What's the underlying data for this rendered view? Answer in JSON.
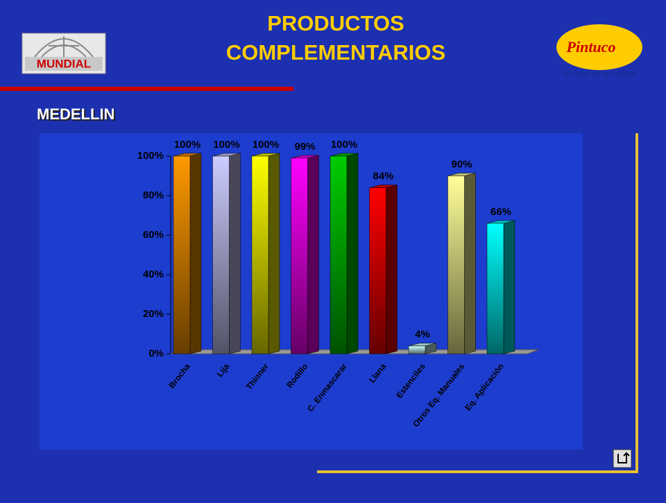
{
  "slide": {
    "title_lines": [
      "PRODUCTOS",
      "COMPLEMENTARIOS"
    ],
    "section": "MEDELLIN",
    "logo_left": "MUNDIAL",
    "logo_right": "Pintuco",
    "tagline": "El Color de la Calidad"
  },
  "chart_data": {
    "type": "bar3d",
    "categories": [
      "Brocha",
      "Lija",
      "Thinner",
      "Rodillo",
      "C. Enmascarar",
      "Llana",
      "Estenciles",
      "Otros Eq. Manuales",
      "Eq. Aplicación"
    ],
    "values": [
      100,
      100,
      100,
      99,
      100,
      84,
      4,
      90,
      66
    ],
    "value_labels": [
      "100%",
      "100%",
      "100%",
      "99%",
      "100%",
      "84%",
      "4%",
      "90%",
      "66%"
    ],
    "colors": [
      "#ff9900",
      "#ccccff",
      "#ffff00",
      "#ff00ff",
      "#00cc00",
      "#ff0000",
      "#ccffff",
      "#ffff99",
      "#00ffff"
    ],
    "ylim": [
      0,
      100
    ],
    "yticks": [
      {
        "value": 0,
        "label": "0%"
      },
      {
        "value": 20,
        "label": "20%"
      },
      {
        "value": 40,
        "label": "40%"
      },
      {
        "value": 60,
        "label": "60%"
      },
      {
        "value": 80,
        "label": "80%"
      },
      {
        "value": 100,
        "label": "100%"
      }
    ]
  }
}
